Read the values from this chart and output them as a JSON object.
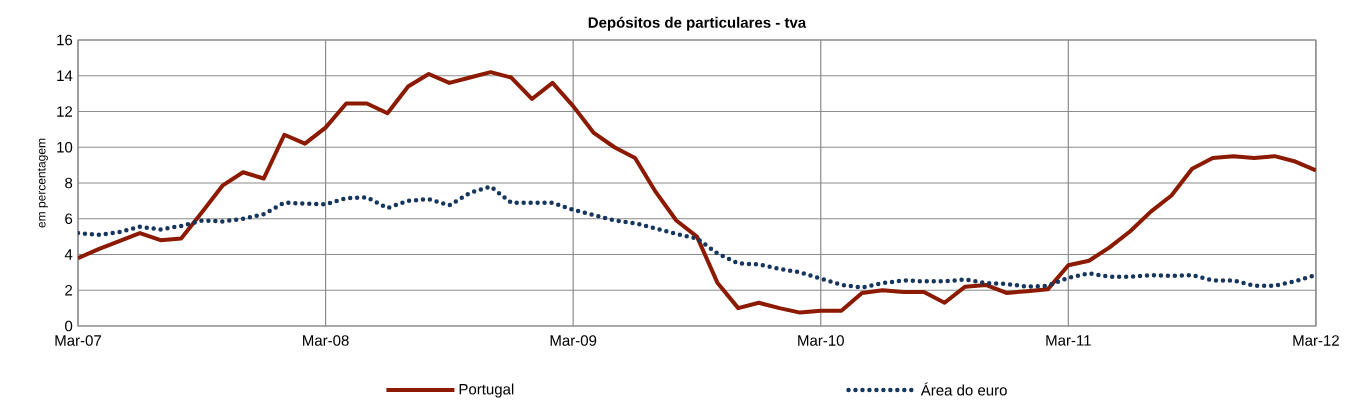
{
  "chart_data": {
    "type": "line",
    "title": "Depósitos de particulares - tva",
    "ylabel": "em percentagem",
    "x": [
      "2007-03",
      "2007-04",
      "2007-05",
      "2007-06",
      "2007-07",
      "2007-08",
      "2007-09",
      "2007-10",
      "2007-11",
      "2007-12",
      "2008-01",
      "2008-02",
      "2008-03",
      "2008-04",
      "2008-05",
      "2008-06",
      "2008-07",
      "2008-08",
      "2008-09",
      "2008-10",
      "2008-11",
      "2008-12",
      "2009-01",
      "2009-02",
      "2009-03",
      "2009-04",
      "2009-05",
      "2009-06",
      "2009-07",
      "2009-08",
      "2009-09",
      "2009-10",
      "2009-11",
      "2009-12",
      "2010-01",
      "2010-02",
      "2010-03",
      "2010-04",
      "2010-05",
      "2010-06",
      "2010-07",
      "2010-08",
      "2010-09",
      "2010-10",
      "2010-11",
      "2010-12",
      "2011-01",
      "2011-02",
      "2011-03",
      "2011-04",
      "2011-05",
      "2011-06",
      "2011-07",
      "2011-08",
      "2011-09",
      "2011-10",
      "2011-11",
      "2011-12",
      "2012-01",
      "2012-02",
      "2012-03"
    ],
    "series": [
      {
        "name": "Portugal",
        "color": "#8b1a00",
        "line_style": "solid",
        "values": [
          3.8,
          4.3,
          4.75,
          5.2,
          4.8,
          4.9,
          6.35,
          7.85,
          8.6,
          8.25,
          10.7,
          10.2,
          11.1,
          12.45,
          12.45,
          11.9,
          13.4,
          14.1,
          13.6,
          13.9,
          14.2,
          13.9,
          12.7,
          13.6,
          12.3,
          10.8,
          10.0,
          9.4,
          7.5,
          5.9,
          5.0,
          2.4,
          1.0,
          1.3,
          1.0,
          0.75,
          0.85,
          0.85,
          1.85,
          2.0,
          1.9,
          1.9,
          1.3,
          2.2,
          2.3,
          1.85,
          1.95,
          2.05,
          3.4,
          3.65,
          4.4,
          5.3,
          6.4,
          7.3,
          8.8,
          9.4,
          9.5,
          9.4,
          9.5,
          9.2,
          8.7
        ]
      },
      {
        "name": "Área do euro",
        "color": "#17365d",
        "line_style": "dotted",
        "values": [
          5.2,
          5.1,
          5.25,
          5.55,
          5.4,
          5.6,
          5.9,
          5.85,
          6.0,
          6.25,
          6.9,
          6.85,
          6.8,
          7.15,
          7.2,
          6.6,
          7.0,
          7.1,
          6.75,
          7.45,
          7.8,
          6.9,
          6.9,
          6.9,
          6.5,
          6.2,
          5.9,
          5.75,
          5.45,
          5.15,
          4.9,
          4.05,
          3.5,
          3.45,
          3.2,
          3.0,
          2.65,
          2.3,
          2.15,
          2.4,
          2.55,
          2.5,
          2.5,
          2.6,
          2.4,
          2.35,
          2.2,
          2.25,
          2.7,
          2.95,
          2.75,
          2.75,
          2.85,
          2.8,
          2.85,
          2.55,
          2.55,
          2.25,
          2.25,
          2.5,
          2.85
        ]
      }
    ],
    "xlim": [
      "2007-03",
      "2012-03"
    ],
    "xticks": [
      {
        "value": "2007-03",
        "label": "Mar-07"
      },
      {
        "value": "2008-03",
        "label": "Mar-08"
      },
      {
        "value": "2009-03",
        "label": "Mar-09"
      },
      {
        "value": "2010-03",
        "label": "Mar-10"
      },
      {
        "value": "2011-03",
        "label": "Mar-11"
      },
      {
        "value": "2012-03",
        "label": "Mar-12"
      }
    ],
    "ylim": [
      0,
      16
    ],
    "yticks": [
      0,
      2,
      4,
      6,
      8,
      10,
      12,
      14,
      16
    ],
    "grid": true,
    "legend": "bottom",
    "marker": "none"
  }
}
